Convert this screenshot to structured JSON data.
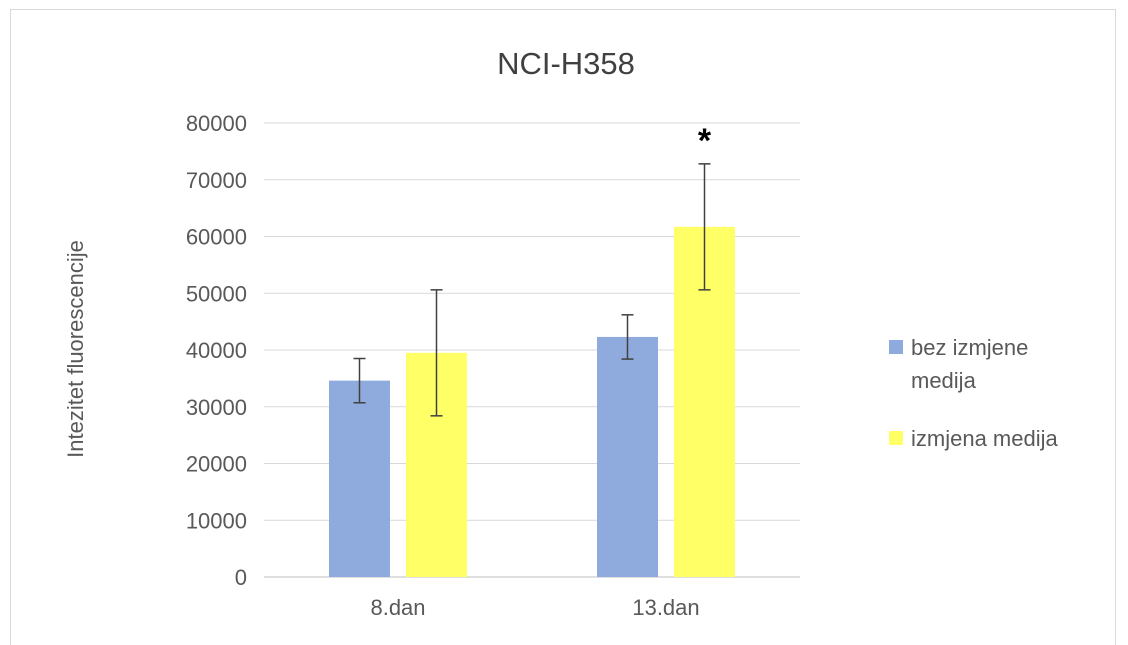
{
  "chart_data": {
    "type": "bar",
    "title": "NCI-H358",
    "xlabel": "",
    "ylabel": "Intezitet fluorescencije",
    "categories": [
      "8.dan",
      "13.dan"
    ],
    "ylim": [
      0,
      80000
    ],
    "yticks": [
      0,
      10000,
      20000,
      30000,
      40000,
      50000,
      60000,
      70000,
      80000
    ],
    "grid": true,
    "legend_position": "right",
    "series": [
      {
        "name": "bez izmjene medija",
        "legend_lines": [
          "bez izmjene",
          "medija"
        ],
        "color": "#8faadc",
        "values": [
          34600,
          42300
        ],
        "error": [
          3900,
          3900
        ]
      },
      {
        "name": "izmjena medija",
        "legend_lines": [
          "izmjena medija"
        ],
        "color": "#ffff66",
        "values": [
          39500,
          61700
        ],
        "error": [
          11100,
          11100
        ]
      }
    ],
    "annotations": [
      {
        "text": "*",
        "category": "13.dan",
        "series": "izmjena medija"
      }
    ]
  }
}
